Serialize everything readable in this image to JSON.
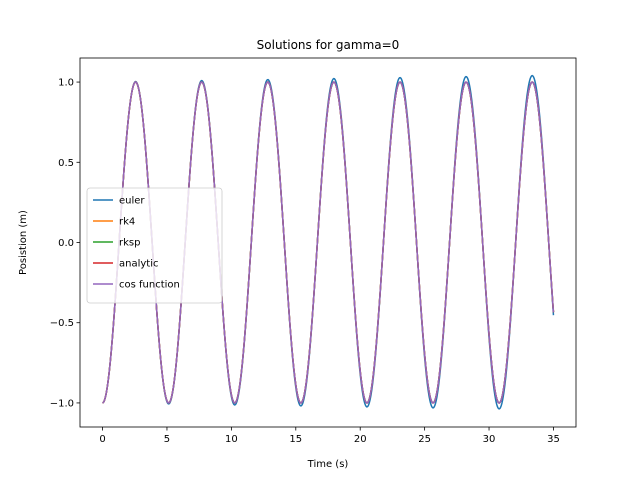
{
  "chart_data": {
    "type": "line",
    "title": "Solutions for gamma=0",
    "xlabel": "Time (s)",
    "ylabel": "Posistion (m)",
    "xlim": [
      -1.75,
      36.75
    ],
    "ylim": [
      -1.15,
      1.15
    ],
    "xticks": [
      0,
      5,
      10,
      15,
      20,
      25,
      30,
      35
    ],
    "yticks": [
      -1.0,
      -0.5,
      0.0,
      0.5,
      1.0
    ],
    "xtick_labels": [
      "0",
      "5",
      "10",
      "15",
      "20",
      "25",
      "30",
      "35"
    ],
    "ytick_labels": [
      "−1.0",
      "−0.5",
      "0.0",
      "0.5",
      "1.0"
    ],
    "grid": false,
    "legend_position": "center-left",
    "x_range": [
      0,
      35
    ],
    "angular_frequency": 1.2246,
    "initial_value": -1.0,
    "series": [
      {
        "name": "euler",
        "color": "#1f77b4",
        "amplitude_growth_per_s": 0.0012
      },
      {
        "name": "rk4",
        "color": "#ff7f0e",
        "amplitude_growth_per_s": 0.0
      },
      {
        "name": "rksp",
        "color": "#2ca02c",
        "amplitude_growth_per_s": 0.0
      },
      {
        "name": "analytic",
        "color": "#d62728",
        "amplitude_growth_per_s": 0.0
      },
      {
        "name": "cos function",
        "color": "#9467bd",
        "amplitude_growth_per_s": 0.0
      }
    ]
  }
}
